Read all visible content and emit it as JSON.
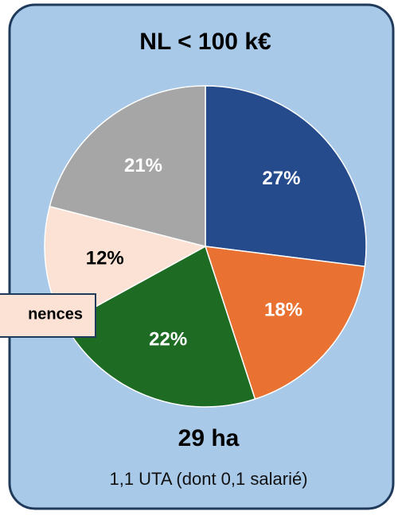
{
  "chart_data": {
    "type": "pie",
    "title": "NL < 100 k€",
    "values": [
      27,
      18,
      22,
      12,
      21
    ],
    "value_labels": [
      "27%",
      "18%",
      "22%",
      "12%",
      "21%"
    ],
    "colors": [
      "#264b8c",
      "#e97132",
      "#1e6b24",
      "#fbe2d5",
      "#a6a6a6"
    ],
    "annotation": "nences",
    "subtitle": "29 ha",
    "note": "1,1 UTA (dont 0,1 salarié)"
  }
}
